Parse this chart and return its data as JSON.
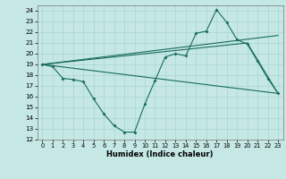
{
  "xlabel": "Humidex (Indice chaleur)",
  "background_color": "#c5e8e5",
  "line_color": "#1a6b5e",
  "grid_color": "#a8d5d0",
  "xlim": [
    -0.5,
    23.5
  ],
  "ylim": [
    12,
    24.5
  ],
  "yticks": [
    12,
    13,
    14,
    15,
    16,
    17,
    18,
    19,
    20,
    21,
    22,
    23,
    24
  ],
  "xticks": [
    0,
    1,
    2,
    3,
    4,
    5,
    6,
    7,
    8,
    9,
    10,
    11,
    12,
    13,
    14,
    15,
    16,
    17,
    18,
    19,
    20,
    21,
    22,
    23
  ],
  "line_zigzag_x": [
    0,
    1,
    2,
    3,
    4,
    5,
    6,
    7,
    8,
    9,
    10,
    11,
    12,
    13,
    14,
    15,
    16,
    17,
    18,
    19,
    20,
    21,
    22,
    23
  ],
  "line_zigzag_y": [
    19.0,
    18.8,
    17.7,
    17.6,
    17.4,
    15.8,
    14.4,
    13.3,
    12.7,
    12.7,
    15.3,
    17.5,
    19.7,
    20.0,
    19.8,
    21.9,
    22.1,
    24.1,
    22.9,
    21.3,
    20.9,
    19.3,
    17.7,
    16.3
  ],
  "line2_x": [
    0,
    23
  ],
  "line2_y": [
    19.0,
    21.7
  ],
  "line3_x": [
    0,
    20,
    23
  ],
  "line3_y": [
    19.0,
    21.0,
    16.3
  ],
  "line4_x": [
    0,
    23
  ],
  "line4_y": [
    19.0,
    16.3
  ]
}
